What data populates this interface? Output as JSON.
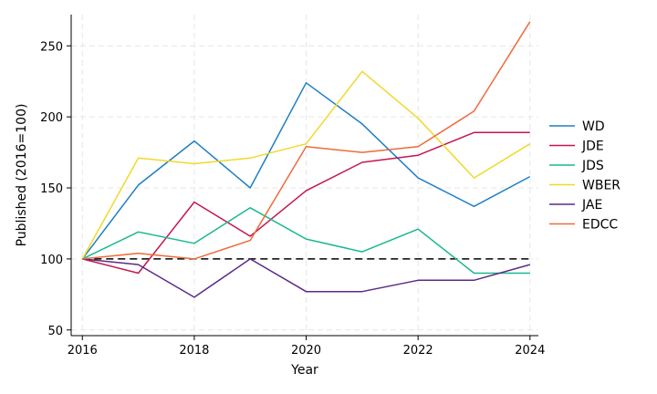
{
  "chart_data": {
    "type": "line",
    "title": "",
    "xlabel": "Year",
    "ylabel": "Published (2016=100)",
    "x": [
      2016,
      2017,
      2018,
      2019,
      2020,
      2021,
      2022,
      2023,
      2024
    ],
    "xticks": [
      2016,
      2018,
      2020,
      2022,
      2024
    ],
    "yticks": [
      50,
      100,
      150,
      200,
      250
    ],
    "xlim": [
      2015.8,
      2024.15
    ],
    "ylim": [
      46,
      272
    ],
    "reference_line": {
      "y": 100,
      "style": "dashed"
    },
    "legend_position": "right",
    "series": [
      {
        "name": "WD",
        "color": "#1f7fc4",
        "values": [
          100,
          152,
          183,
          150,
          224,
          195,
          157,
          137,
          158
        ]
      },
      {
        "name": "JDE",
        "color": "#c5164e",
        "values": [
          100,
          90,
          140,
          116,
          148,
          168,
          173,
          189,
          189
        ]
      },
      {
        "name": "JDS",
        "color": "#18b890",
        "values": [
          100,
          119,
          111,
          136,
          114,
          105,
          121,
          90,
          90
        ]
      },
      {
        "name": "WBER",
        "color": "#f2d82a",
        "values": [
          100,
          171,
          167,
          171,
          181,
          232,
          199,
          157,
          181
        ]
      },
      {
        "name": "JAE",
        "color": "#5b2a86",
        "values": [
          100,
          96,
          73,
          100,
          77,
          77,
          85,
          85,
          96
        ]
      },
      {
        "name": "EDCC",
        "color": "#ee6b3b",
        "values": [
          100,
          104,
          100,
          113,
          179,
          175,
          179,
          204,
          267
        ]
      }
    ]
  }
}
